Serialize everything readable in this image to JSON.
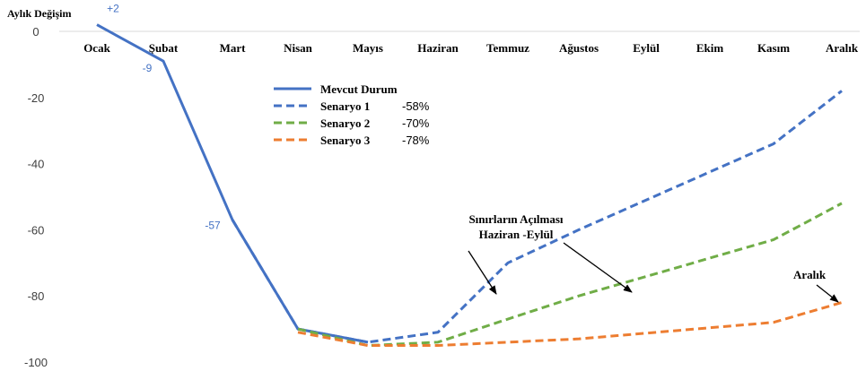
{
  "chart_data": {
    "type": "line",
    "title": "",
    "ylabel": "Aylık Değişim",
    "xlabel": "",
    "ylim": [
      -100,
      5
    ],
    "yticks": [
      0,
      -20,
      -40,
      -60,
      -80,
      -100
    ],
    "grid": false,
    "legend_position": "top-center",
    "categories": [
      "Ocak",
      "Şubat",
      "Mart",
      "Nisan",
      "Mayıs",
      "Haziran",
      "Temmuz",
      "Ağustos",
      "Eylül",
      "Ekim",
      "Kasım",
      "Aralık"
    ],
    "series": [
      {
        "name": "Mevcut Durum",
        "style": "solid",
        "color": "#4472c4",
        "values": [
          2,
          -9,
          -57,
          -90,
          -94,
          null,
          null,
          null,
          null,
          null,
          null,
          null
        ]
      },
      {
        "name": "Senaryo 1",
        "style": "dashed",
        "color": "#4472c4",
        "result_label": "-58%",
        "values": [
          null,
          null,
          -57,
          -90,
          -94,
          -91,
          -70,
          -60,
          null,
          null,
          -34,
          -18
        ]
      },
      {
        "name": "Senaryo 2",
        "style": "dashed",
        "color": "#70ad47",
        "result_label": "-70%",
        "values": [
          null,
          null,
          null,
          -90,
          -95,
          -94,
          -87,
          -80,
          null,
          null,
          -63,
          -52
        ]
      },
      {
        "name": "Senaryo 3",
        "style": "dashed",
        "color": "#ed7d31",
        "result_label": "-78%",
        "values": [
          null,
          null,
          null,
          -91,
          -95,
          -95,
          -94,
          -93,
          null,
          null,
          -88,
          -82
        ]
      }
    ],
    "point_labels": [
      {
        "text": "+2",
        "category": "Ocak",
        "value": 2
      },
      {
        "text": "-9",
        "category": "Şubat",
        "value": -9
      },
      {
        "text": "-57",
        "category": "Mart",
        "value": -57
      }
    ],
    "annotations": [
      {
        "lines": [
          "Sınırların Açılması",
          "Haziran -Eylül"
        ]
      },
      {
        "lines": [
          "Aralık"
        ]
      }
    ]
  }
}
